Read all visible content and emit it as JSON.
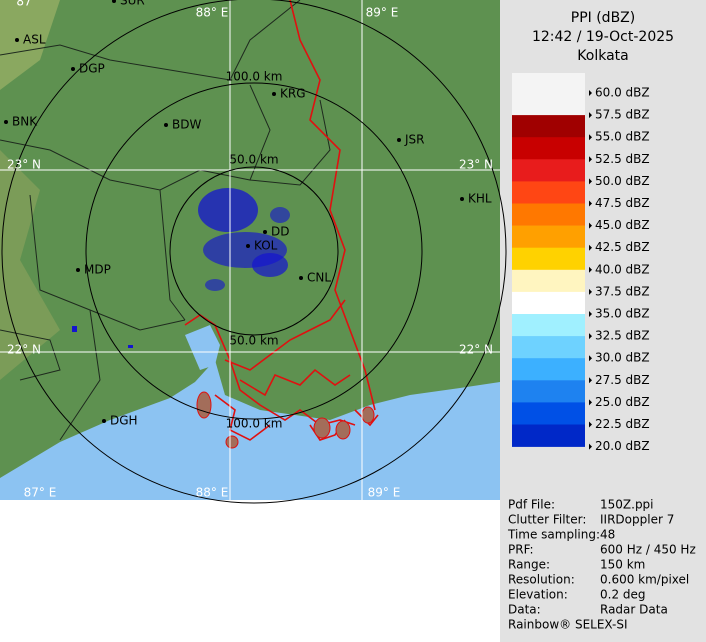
{
  "header": {
    "title": "PPI (dBZ)",
    "timestamp": "12:42 / 19-Oct-2025",
    "station": "Kolkata"
  },
  "map": {
    "grid_labels": [
      "87°",
      "88° E",
      "89° E",
      "23° N",
      "22° N",
      "23° N",
      "22° N",
      "87° E",
      "88° E",
      "89° E"
    ],
    "cities": [
      "SUR",
      "ASL",
      "DGP",
      "BNK",
      "BDW",
      "KRG",
      "JSR",
      "KHL",
      "MDP",
      "CNL",
      "DD",
      "KOL",
      "DGH"
    ],
    "range_labels": [
      "100.0 km",
      "50.0 km",
      "50.0 km",
      "100.0 km"
    ]
  },
  "legend": {
    "labels": [
      "60.0 dBZ",
      "57.5 dBZ",
      "55.0 dBZ",
      "52.5 dBZ",
      "50.0 dBZ",
      "47.5 dBZ",
      "45.0 dBZ",
      "42.5 dBZ",
      "40.0 dBZ",
      "37.5 dBZ",
      "35.0 dBZ",
      "32.5 dBZ",
      "30.0 dBZ",
      "27.5 dBZ",
      "25.0 dBZ",
      "22.5 dBZ",
      "20.0 dBZ"
    ],
    "colors": [
      "#f4f4f4",
      "#a00000",
      "#c80000",
      "#e81c1c",
      "#ff4614",
      "#ff7800",
      "#ffa000",
      "#ffd200",
      "#fff5c0",
      "#ffffff",
      "#a0f0ff",
      "#6ed2ff",
      "#3cb0ff",
      "#1e82f0",
      "#0050e6",
      "#0028c8",
      "#0000a0"
    ]
  },
  "info": {
    "rows": [
      [
        "Pdf File:",
        "150Z.ppi"
      ],
      [
        "Clutter Filter:",
        "IIRDoppler 7"
      ],
      [
        "Time sampling:",
        "48"
      ],
      [
        "PRF:",
        "600 Hz / 450 Hz"
      ],
      [
        "Range:",
        "150 km"
      ],
      [
        "Resolution:",
        "0.600 km/pixel"
      ],
      [
        "Elevation:",
        "0.2 deg"
      ],
      [
        "Data:",
        "Radar Data"
      ]
    ],
    "footer": "Rainbow® SELEX-SI"
  }
}
